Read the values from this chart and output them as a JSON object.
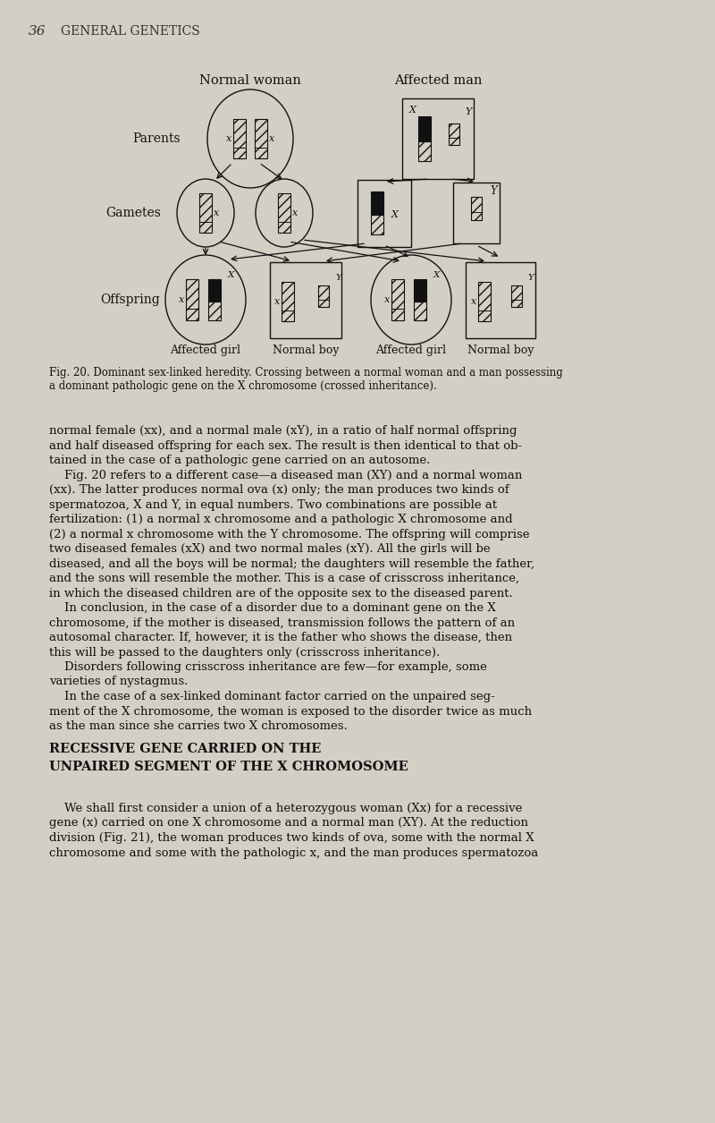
{
  "bg_color": "#d4cfc4",
  "header_number": "36",
  "header_title": "GENERAL GENETICS",
  "fig_title_left": "Normal woman",
  "fig_title_right": "Affected man",
  "label_parents": "Parents",
  "label_gametes": "Gametes",
  "label_offspring": "Offspring",
  "offspring_labels": [
    "Affected girl",
    "Normal boy",
    "Affected girl",
    "Normal boy"
  ],
  "fig_caption_line1": "Fig. 20. Dominant sex-linked heredity. Crossing between a normal woman and a man possessing",
  "fig_caption_line2": "a dominant pathologic gene on the X chromosome (crossed inheritance).",
  "body_text": [
    "normal female (xx), and a normal male (xY), in a ratio of half normal offspring",
    "and half diseased offspring for each sex. The result is then identical to that ob-",
    "tained in the case of a pathologic gene carried on an autosome.",
    "    Fig. 20 refers to a different case—a diseased man (XY) and a normal woman",
    "(xx). The latter produces normal ova (x) only; the man produces two kinds of",
    "spermatozoa, X and Y, in equal numbers. Two combinations are possible at",
    "fertilization: (1) a normal x chromosome and a pathologic X chromosome and",
    "(2) a normal x chromosome with the Y chromosome. The offspring will comprise",
    "two diseased females (xX) and two normal males (xY). All the girls will be",
    "diseased, and all the boys will be normal; the daughters will resemble the father,",
    "and the sons will resemble the mother. This is a case of crisscross inheritance,",
    "in which the diseased children are of the opposite sex to the diseased parent.",
    "    In conclusion, in the case of a disorder due to a dominant gene on the X",
    "chromosome, if the mother is diseased, transmission follows the pattern of an",
    "autosomal character. If, however, it is the father who shows the disease, then",
    "this will be passed to the daughters only (crisscross inheritance).",
    "    Disorders following crisscross inheritance are few—for example, some",
    "varieties of nystagmus.",
    "    In the case of a sex-linked dominant factor carried on the unpaired seg-",
    "ment of the X chromosome, the woman is exposed to the disorder twice as much",
    "as the man since she carries two X chromosomes."
  ],
  "section_heading_line1": "RECESSIVE GENE CARRIED ON THE",
  "section_heading_line2": "UNPAIRED SEGMENT OF THE X CHROMOSOME",
  "final_text": [
    "    We shall first consider a union of a heterozygous woman (Xx) for a recessive",
    "gene (x) carried on one X chromosome and a normal man (XY). At the reduction",
    "division (Fig. 21), the woman produces two kinds of ova, some with the normal X",
    "chromosome and some with the pathologic x, and the man produces spermatozoa"
  ]
}
